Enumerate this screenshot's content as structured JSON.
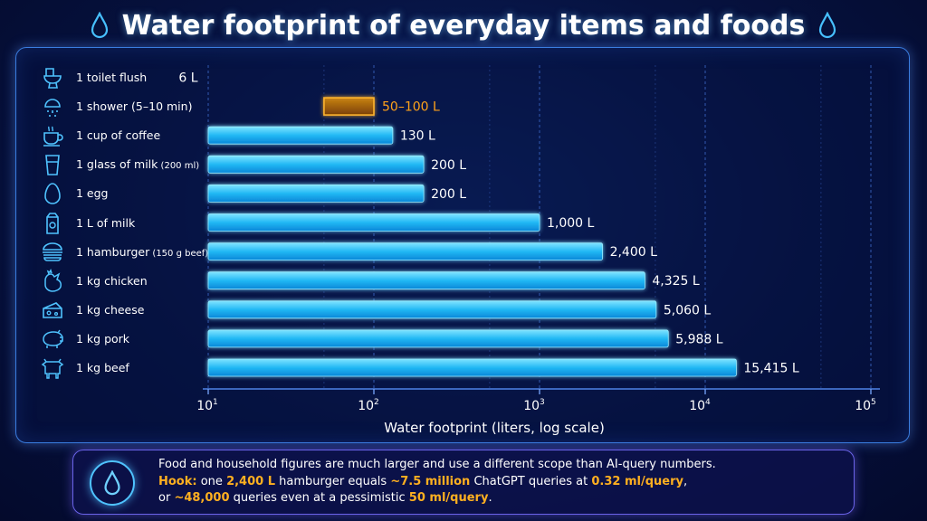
{
  "title": "Water footprint of everyday items and foods",
  "chart_data": {
    "type": "bar",
    "orientation": "horizontal",
    "scale": "log",
    "xlabel": "Water footprint (liters, log scale)",
    "xlim": [
      10,
      100000
    ],
    "ticks": [
      {
        "value": 10,
        "base": "10",
        "exp": "1"
      },
      {
        "value": 100,
        "base": "10",
        "exp": "2"
      },
      {
        "value": 1000,
        "base": "10",
        "exp": "3"
      },
      {
        "value": 10000,
        "base": "10",
        "exp": "4"
      },
      {
        "value": 100000,
        "base": "10",
        "exp": "5"
      }
    ],
    "grid": true,
    "bar_color": "#21b8f4",
    "range_color": "#ffa21a",
    "items": [
      {
        "label": "1 toilet flush",
        "value": 6,
        "display": "6 L",
        "icon": "toilet-icon"
      },
      {
        "label": "1 shower (5–10 min)",
        "low": 50,
        "high": 100,
        "value": 75,
        "display": "50–100 L",
        "highlight": true,
        "icon": "shower-icon"
      },
      {
        "label": "1 cup of coffee",
        "value": 130,
        "display": "130 L",
        "icon": "coffee-cup-icon"
      },
      {
        "label": "1 glass of milk",
        "label_small": "(200 ml)",
        "value": 200,
        "display": "200 L",
        "icon": "glass-icon"
      },
      {
        "label": "1 egg",
        "value": 200,
        "display": "200 L",
        "icon": "egg-icon"
      },
      {
        "label": "1 L of milk",
        "value": 1000,
        "display": "1,000 L",
        "icon": "milk-carton-icon"
      },
      {
        "label": "1 hamburger",
        "label_small": "(150 g beef)",
        "value": 2400,
        "display": "2,400 L",
        "icon": "hamburger-icon"
      },
      {
        "label": "1 kg chicken",
        "value": 4325,
        "display": "4,325 L",
        "icon": "chicken-icon"
      },
      {
        "label": "1 kg cheese",
        "value": 5060,
        "display": "5,060 L",
        "icon": "cheese-icon"
      },
      {
        "label": "1 kg pork",
        "value": 5988,
        "display": "5,988 L",
        "icon": "pig-icon"
      },
      {
        "label": "1 kg beef",
        "value": 15415,
        "display": "15,415 L",
        "icon": "cow-icon"
      }
    ]
  },
  "footer": {
    "icon": "water-drop-icon",
    "line1": "Food and household figures are much larger and use a different scope than AI-query numbers.",
    "line2": [
      {
        "t": "Hook:",
        "h": true
      },
      {
        "t": " one ",
        "h": false
      },
      {
        "t": "2,400 L",
        "h": true
      },
      {
        "t": " hamburger equals ",
        "h": false
      },
      {
        "t": "~7.5 million",
        "h": true
      },
      {
        "t": " ChatGPT queries at ",
        "h": false
      },
      {
        "t": "0.32 ml/query",
        "h": true
      },
      {
        "t": ",",
        "h": false
      }
    ],
    "line3": [
      {
        "t": "or ",
        "h": false
      },
      {
        "t": "~48,000",
        "h": true
      },
      {
        "t": " queries even at a pessimistic ",
        "h": false
      },
      {
        "t": "50 ml/query",
        "h": true
      },
      {
        "t": ".",
        "h": false
      }
    ]
  }
}
